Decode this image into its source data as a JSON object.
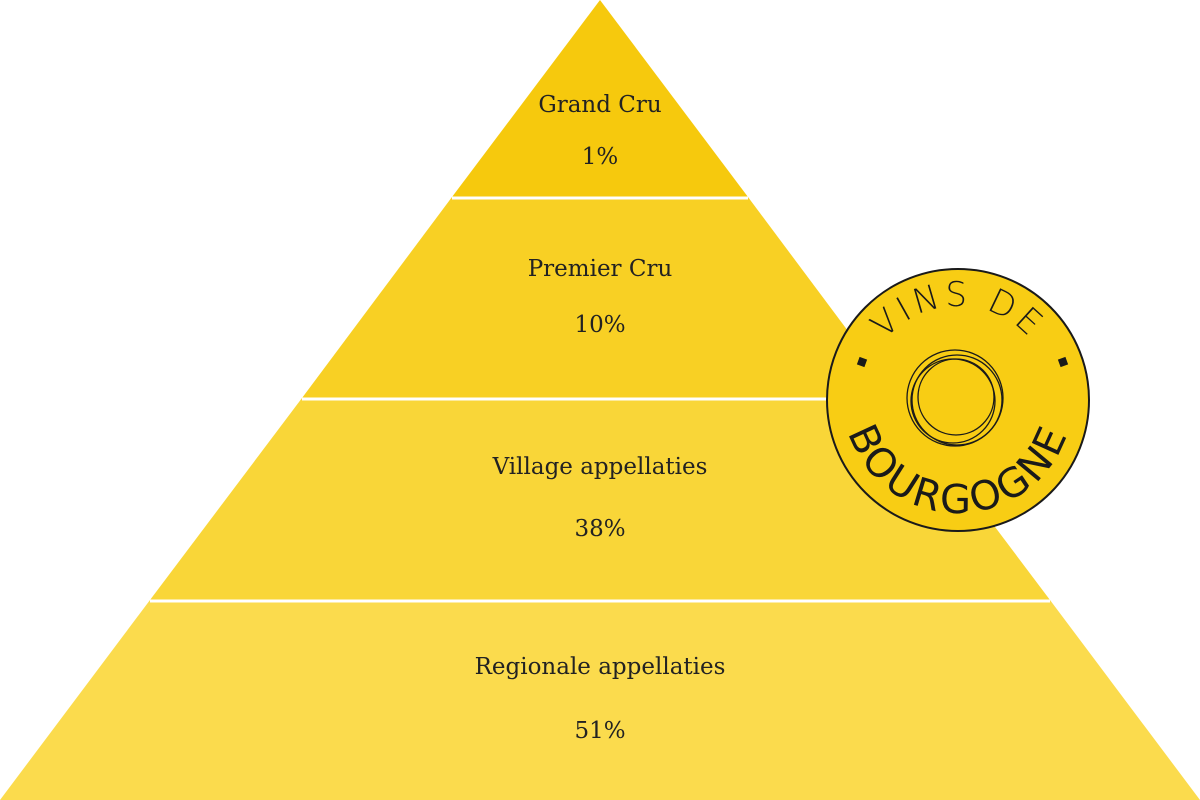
{
  "levels": [
    {
      "label": "Grand Cru",
      "share": "1%"
    },
    {
      "label": "Premier Cru",
      "share": "10%"
    },
    {
      "label": "Village appellaties",
      "share": "38%"
    },
    {
      "label": "Regionale appellaties",
      "share": "51%"
    }
  ],
  "logo": {
    "top": "VINS DE",
    "bottom": "BOURGOGNE"
  }
}
